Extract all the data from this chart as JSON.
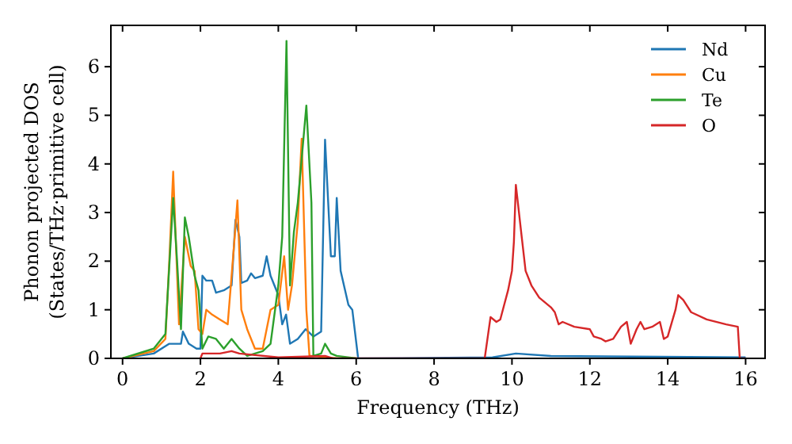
{
  "chart_data": {
    "type": "line",
    "xlabel": "Frequency (THz)",
    "ylabel": "Phonon projected DOS\n(States/THz·primitive cell)",
    "xlim": [
      -0.3,
      16.5
    ],
    "ylim": [
      0,
      6.85
    ],
    "xticks": [
      0,
      2,
      4,
      6,
      8,
      10,
      12,
      14,
      16
    ],
    "yticks": [
      0,
      1,
      2,
      3,
      4,
      5,
      6
    ],
    "legend": "top right",
    "grid": false,
    "series": [
      {
        "name": "Nd",
        "color": "#1f77b4",
        "x": [
          0,
          0.8,
          1.2,
          1.5,
          1.55,
          1.7,
          1.9,
          2.0,
          2.05,
          2.15,
          2.3,
          2.4,
          2.6,
          2.8,
          2.9,
          3.0,
          3.05,
          3.2,
          3.3,
          3.4,
          3.6,
          3.7,
          3.8,
          3.9,
          4.0,
          4.1,
          4.2,
          4.3,
          4.5,
          4.7,
          4.9,
          5.1,
          5.2,
          5.35,
          5.45,
          5.5,
          5.6,
          5.8,
          5.9,
          6.05,
          9.5,
          10.1,
          11,
          16
        ],
        "values": [
          0,
          0.1,
          0.3,
          0.3,
          0.55,
          0.3,
          0.2,
          0.2,
          1.7,
          1.6,
          1.6,
          1.35,
          1.4,
          1.5,
          2.85,
          2.5,
          1.55,
          1.6,
          1.75,
          1.65,
          1.7,
          2.1,
          1.7,
          1.5,
          1.3,
          0.7,
          0.9,
          0.3,
          0.4,
          0.6,
          0.45,
          0.55,
          4.5,
          2.1,
          2.1,
          3.3,
          1.8,
          1.1,
          1.0,
          0,
          0.02,
          0.1,
          0.05,
          0.02
        ]
      },
      {
        "name": "Cu",
        "color": "#ff7f0e",
        "x": [
          0,
          0.8,
          1.1,
          1.2,
          1.3,
          1.45,
          1.6,
          1.75,
          1.85,
          1.95,
          2.05,
          2.15,
          2.3,
          2.5,
          2.7,
          2.85,
          2.95,
          3.05,
          3.2,
          3.4,
          3.6,
          3.8,
          4.0,
          4.15,
          4.25,
          4.35,
          4.5,
          4.6,
          4.72,
          4.8,
          4.95,
          5.2,
          5.5,
          6
        ],
        "values": [
          0,
          0.15,
          0.4,
          2.0,
          3.84,
          0.7,
          2.5,
          1.9,
          1.8,
          0.6,
          0.5,
          1.0,
          0.9,
          0.8,
          0.7,
          2.2,
          3.25,
          1.0,
          0.6,
          0.2,
          0.2,
          1.0,
          1.1,
          2.1,
          1.0,
          1.5,
          2.8,
          4.52,
          1.0,
          0.05,
          0.05,
          0.02,
          0,
          0
        ]
      },
      {
        "name": "Te",
        "color": "#2ca02c",
        "x": [
          0,
          0.8,
          1.1,
          1.3,
          1.4,
          1.5,
          1.6,
          1.7,
          1.85,
          1.95,
          2.05,
          2.2,
          2.4,
          2.6,
          2.8,
          3.0,
          3.2,
          3.6,
          3.8,
          4.0,
          4.1,
          4.21,
          4.3,
          4.4,
          4.5,
          4.72,
          4.85,
          4.9,
          5.1,
          5.2,
          5.35,
          5.5,
          6
        ],
        "values": [
          0,
          0.2,
          0.5,
          3.3,
          2.0,
          0.6,
          2.9,
          2.5,
          1.7,
          1.4,
          0.2,
          0.45,
          0.4,
          0.2,
          0.4,
          0.2,
          0.05,
          0.15,
          0.3,
          1.5,
          2.5,
          6.53,
          1.5,
          2.6,
          3.2,
          5.2,
          3.2,
          0.05,
          0.1,
          0.3,
          0.1,
          0.05,
          0
        ]
      },
      {
        "name": "O",
        "color": "#d62728",
        "x": [
          2.0,
          2.05,
          2.5,
          2.8,
          3.0,
          4,
          5.2,
          5.4,
          9.3,
          9.45,
          9.6,
          9.7,
          9.8,
          9.9,
          10.0,
          10.05,
          10.1,
          10.25,
          10.35,
          10.5,
          10.7,
          11.0,
          11.1,
          11.2,
          11.3,
          11.6,
          12.0,
          12.1,
          12.3,
          12.4,
          12.6,
          12.8,
          12.95,
          13.05,
          13.2,
          13.3,
          13.4,
          13.6,
          13.8,
          13.9,
          14.0,
          14.2,
          14.27,
          14.4,
          14.6,
          15.0,
          15.5,
          15.8,
          15.85,
          16
        ],
        "values": [
          0,
          0.1,
          0.1,
          0.15,
          0.1,
          0.02,
          0.05,
          0,
          0,
          0.85,
          0.75,
          0.8,
          1.1,
          1.4,
          1.8,
          2.4,
          3.57,
          2.5,
          1.8,
          1.5,
          1.25,
          1.05,
          0.95,
          0.7,
          0.75,
          0.65,
          0.6,
          0.45,
          0.4,
          0.35,
          0.4,
          0.65,
          0.75,
          0.3,
          0.6,
          0.75,
          0.6,
          0.65,
          0.75,
          0.4,
          0.45,
          1.0,
          1.3,
          1.2,
          0.95,
          0.8,
          0.7,
          0.65,
          0,
          0
        ]
      }
    ]
  }
}
